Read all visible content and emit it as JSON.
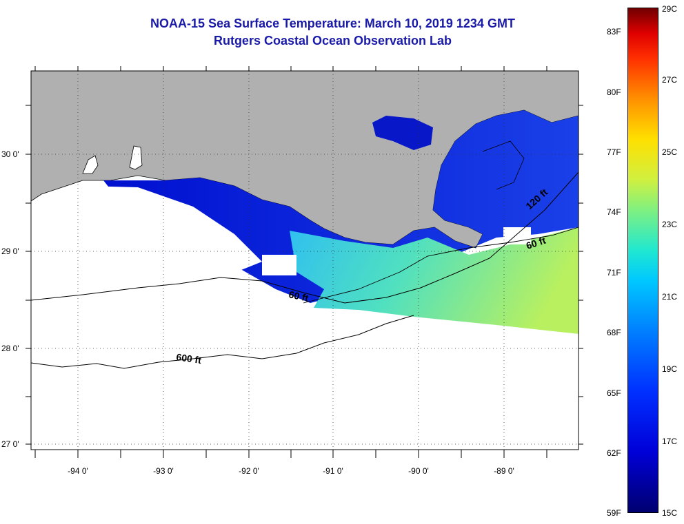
{
  "header": {
    "title": "NOAA-15 Sea Surface Temperature:  March 10, 2019 1234 GMT",
    "subtitle": "Rutgers Coastal Ocean Observation Lab"
  },
  "map": {
    "lat_labels": [
      "30 0'",
      "29 0'",
      "28 0'",
      "27 0'"
    ],
    "lon_labels": [
      "-94 0'",
      "-93 0'",
      "-92 0'",
      "-91 0'",
      "-90 0'",
      "-89 0'"
    ],
    "contour_labels": [
      "600 ft",
      "120 ft",
      "60 ft",
      "60 ft"
    ],
    "colors": {
      "land": "#b0b0b0",
      "no_data": "#ffffff"
    }
  },
  "colorbar": {
    "fahrenheit_labels": [
      "83F",
      "80F",
      "77F",
      "74F",
      "71F",
      "68F",
      "65F",
      "62F",
      "59F"
    ],
    "celsius_labels": [
      "29C",
      "27C",
      "25C",
      "23C",
      "21C",
      "19C",
      "17C",
      "15C"
    ]
  }
}
